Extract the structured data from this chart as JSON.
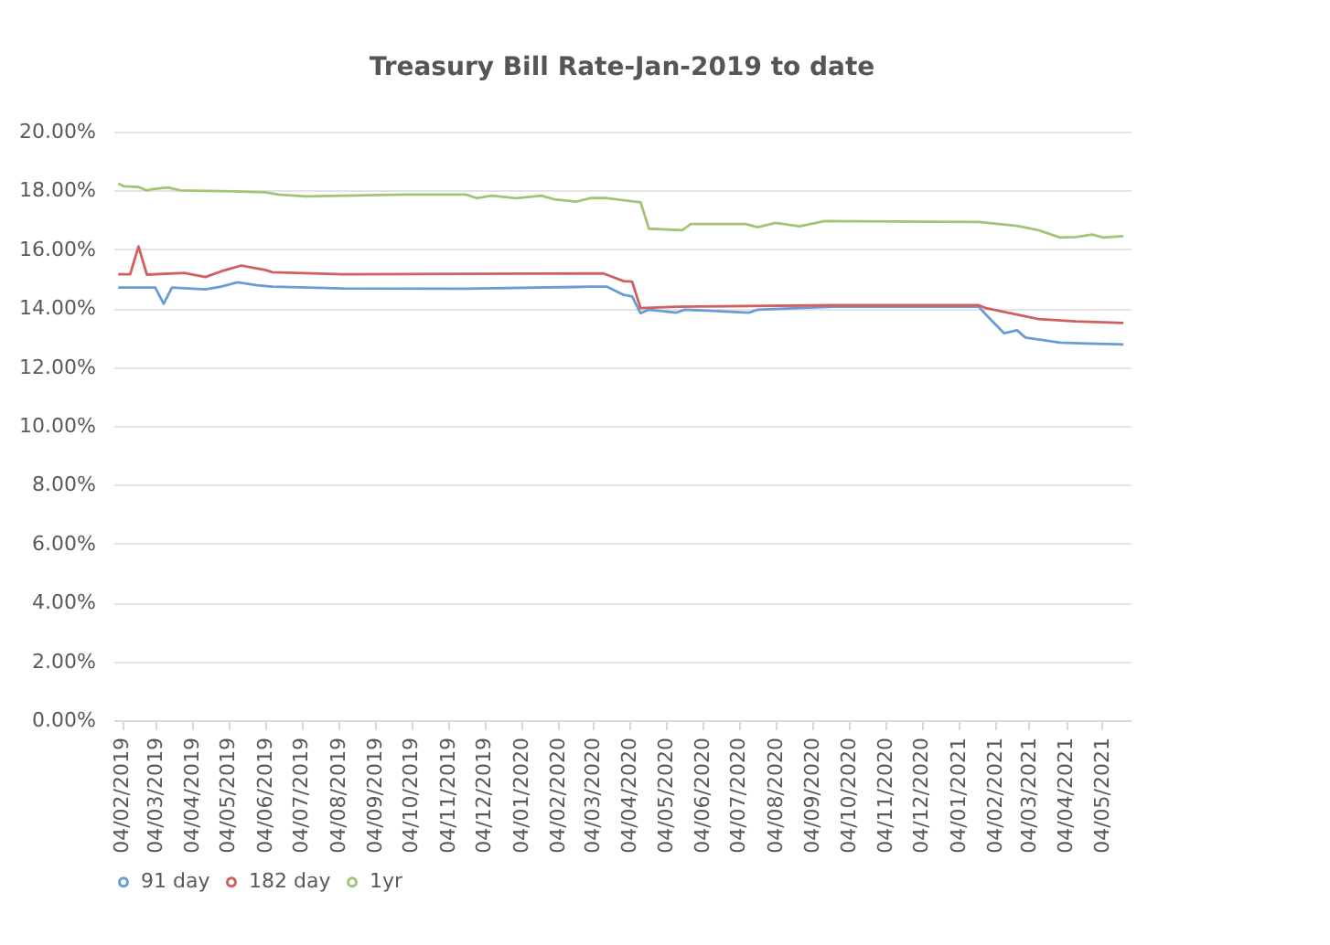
{
  "chart_data": {
    "type": "line",
    "title": "Treasury Bill Rate-Jan-2019 to date",
    "xlim": [
      "2019-01-28",
      "2021-05-28"
    ],
    "xticks": [
      {
        "value": "2019-02-04",
        "label": "04/02/2019"
      },
      {
        "value": "2019-03-04",
        "label": "04/03/2019"
      },
      {
        "value": "2019-04-04",
        "label": "04/04/2019"
      },
      {
        "value": "2019-05-04",
        "label": "04/05/2019"
      },
      {
        "value": "2019-06-04",
        "label": "04/06/2019"
      },
      {
        "value": "2019-07-04",
        "label": "04/07/2019"
      },
      {
        "value": "2019-08-04",
        "label": "04/08/2019"
      },
      {
        "value": "2019-09-04",
        "label": "04/09/2019"
      },
      {
        "value": "2019-10-04",
        "label": "04/10/2019"
      },
      {
        "value": "2019-11-04",
        "label": "04/11/2019"
      },
      {
        "value": "2019-12-04",
        "label": "04/12/2019"
      },
      {
        "value": "2020-01-04",
        "label": "04/01/2020"
      },
      {
        "value": "2020-02-04",
        "label": "04/02/2020"
      },
      {
        "value": "2020-03-04",
        "label": "04/03/2020"
      },
      {
        "value": "2020-04-04",
        "label": "04/04/2020"
      },
      {
        "value": "2020-05-04",
        "label": "04/05/2020"
      },
      {
        "value": "2020-06-04",
        "label": "04/06/2020"
      },
      {
        "value": "2020-07-04",
        "label": "04/07/2020"
      },
      {
        "value": "2020-08-04",
        "label": "04/08/2020"
      },
      {
        "value": "2020-09-04",
        "label": "04/09/2020"
      },
      {
        "value": "2020-10-04",
        "label": "04/10/2020"
      },
      {
        "value": "2020-11-04",
        "label": "04/11/2020"
      },
      {
        "value": "2020-12-04",
        "label": "04/12/2020"
      },
      {
        "value": "2021-01-04",
        "label": "04/01/2021"
      },
      {
        "value": "2021-02-04",
        "label": "04/02/2021"
      },
      {
        "value": "2021-03-04",
        "label": "04/03/2021"
      },
      {
        "value": "2021-04-04",
        "label": "04/04/2021"
      },
      {
        "value": "2021-05-04",
        "label": "04/05/2021"
      }
    ],
    "ylim": [
      0,
      20
    ],
    "yticks": [
      {
        "value": 0,
        "label": "0.00%"
      },
      {
        "value": 2,
        "label": "2.00%"
      },
      {
        "value": 4,
        "label": "4.00%"
      },
      {
        "value": 6,
        "label": "6.00%"
      },
      {
        "value": 8,
        "label": "8.00%"
      },
      {
        "value": 10,
        "label": "10.00%"
      },
      {
        "value": 12,
        "label": "12.00%"
      },
      {
        "value": 14,
        "label": "14.00%"
      },
      {
        "value": 16,
        "label": "16.00%"
      },
      {
        "value": 18,
        "label": "18.00%"
      },
      {
        "value": 20,
        "label": "20.00%"
      }
    ],
    "grid": "y",
    "legend": "bottom",
    "marker": "none",
    "line_style": "solid",
    "series": [
      {
        "name": "91 day",
        "color": "#6a9bd6",
        "x": [
          "2019-02-01",
          "2019-03-04",
          "2019-03-11",
          "2019-03-18",
          "2019-04-15",
          "2019-04-28",
          "2019-05-12",
          "2019-05-28",
          "2019-06-10",
          "2019-08-08",
          "2019-11-19",
          "2020-02-19",
          "2020-03-02",
          "2020-03-16",
          "2020-03-30",
          "2020-04-06",
          "2020-04-13",
          "2020-04-20",
          "2020-05-13",
          "2020-05-20",
          "2020-07-13",
          "2020-07-20",
          "2020-09-21",
          "2021-01-21",
          "2021-01-27",
          "2021-02-11",
          "2021-02-22",
          "2021-03-01",
          "2021-03-30",
          "2021-04-22",
          "2021-05-22"
        ],
        "values": [
          14.7,
          14.7,
          14.15,
          14.7,
          14.64,
          14.73,
          14.88,
          14.78,
          14.73,
          14.67,
          14.66,
          14.72,
          14.73,
          14.73,
          14.45,
          14.4,
          13.83,
          13.95,
          13.85,
          13.95,
          13.85,
          13.95,
          14.05,
          14.05,
          13.78,
          13.15,
          13.25,
          13.0,
          12.83,
          12.8,
          12.77
        ]
      },
      {
        "name": "182 day",
        "color": "#d0605e",
        "x": [
          "2019-02-01",
          "2019-02-11",
          "2019-02-18",
          "2019-02-25",
          "2019-03-28",
          "2019-04-15",
          "2019-04-28",
          "2019-05-15",
          "2019-06-04",
          "2019-06-10",
          "2019-08-08",
          "2020-03-13",
          "2020-03-30",
          "2020-04-06",
          "2020-04-13",
          "2020-05-13",
          "2020-09-21",
          "2021-01-21",
          "2021-01-27",
          "2021-03-12",
          "2021-04-12",
          "2021-05-22"
        ],
        "values": [
          15.15,
          15.15,
          16.1,
          15.14,
          15.2,
          15.06,
          15.25,
          15.45,
          15.3,
          15.22,
          15.15,
          15.18,
          14.92,
          14.9,
          14.0,
          14.05,
          14.1,
          14.1,
          14.0,
          13.63,
          13.55,
          13.5
        ]
      },
      {
        "name": "1yr",
        "color": "#a3c474",
        "x": [
          "2019-02-01",
          "2019-02-06",
          "2019-02-18",
          "2019-02-25",
          "2019-03-02",
          "2019-03-15",
          "2019-03-25",
          "2019-04-28",
          "2019-06-04",
          "2019-06-15",
          "2019-07-08",
          "2019-09-30",
          "2019-11-19",
          "2019-11-28",
          "2019-12-10",
          "2019-12-31",
          "2020-01-21",
          "2020-02-01",
          "2020-02-19",
          "2020-03-02",
          "2020-03-16",
          "2020-04-13",
          "2020-04-20",
          "2020-05-18",
          "2020-05-25",
          "2020-07-10",
          "2020-07-20",
          "2020-08-04",
          "2020-08-24",
          "2020-09-14",
          "2021-01-21",
          "2021-02-22",
          "2021-03-12",
          "2021-03-30",
          "2021-04-12",
          "2021-04-26",
          "2021-05-05",
          "2021-05-22"
        ],
        "values": [
          18.24,
          18.14,
          18.12,
          18.0,
          18.05,
          18.1,
          18.0,
          17.98,
          17.94,
          17.86,
          17.8,
          17.86,
          17.86,
          17.74,
          17.82,
          17.74,
          17.82,
          17.7,
          17.62,
          17.74,
          17.74,
          17.6,
          16.7,
          16.65,
          16.86,
          16.86,
          16.75,
          16.9,
          16.78,
          16.96,
          16.93,
          16.8,
          16.65,
          16.4,
          16.42,
          16.5,
          16.4,
          16.45
        ]
      }
    ]
  }
}
